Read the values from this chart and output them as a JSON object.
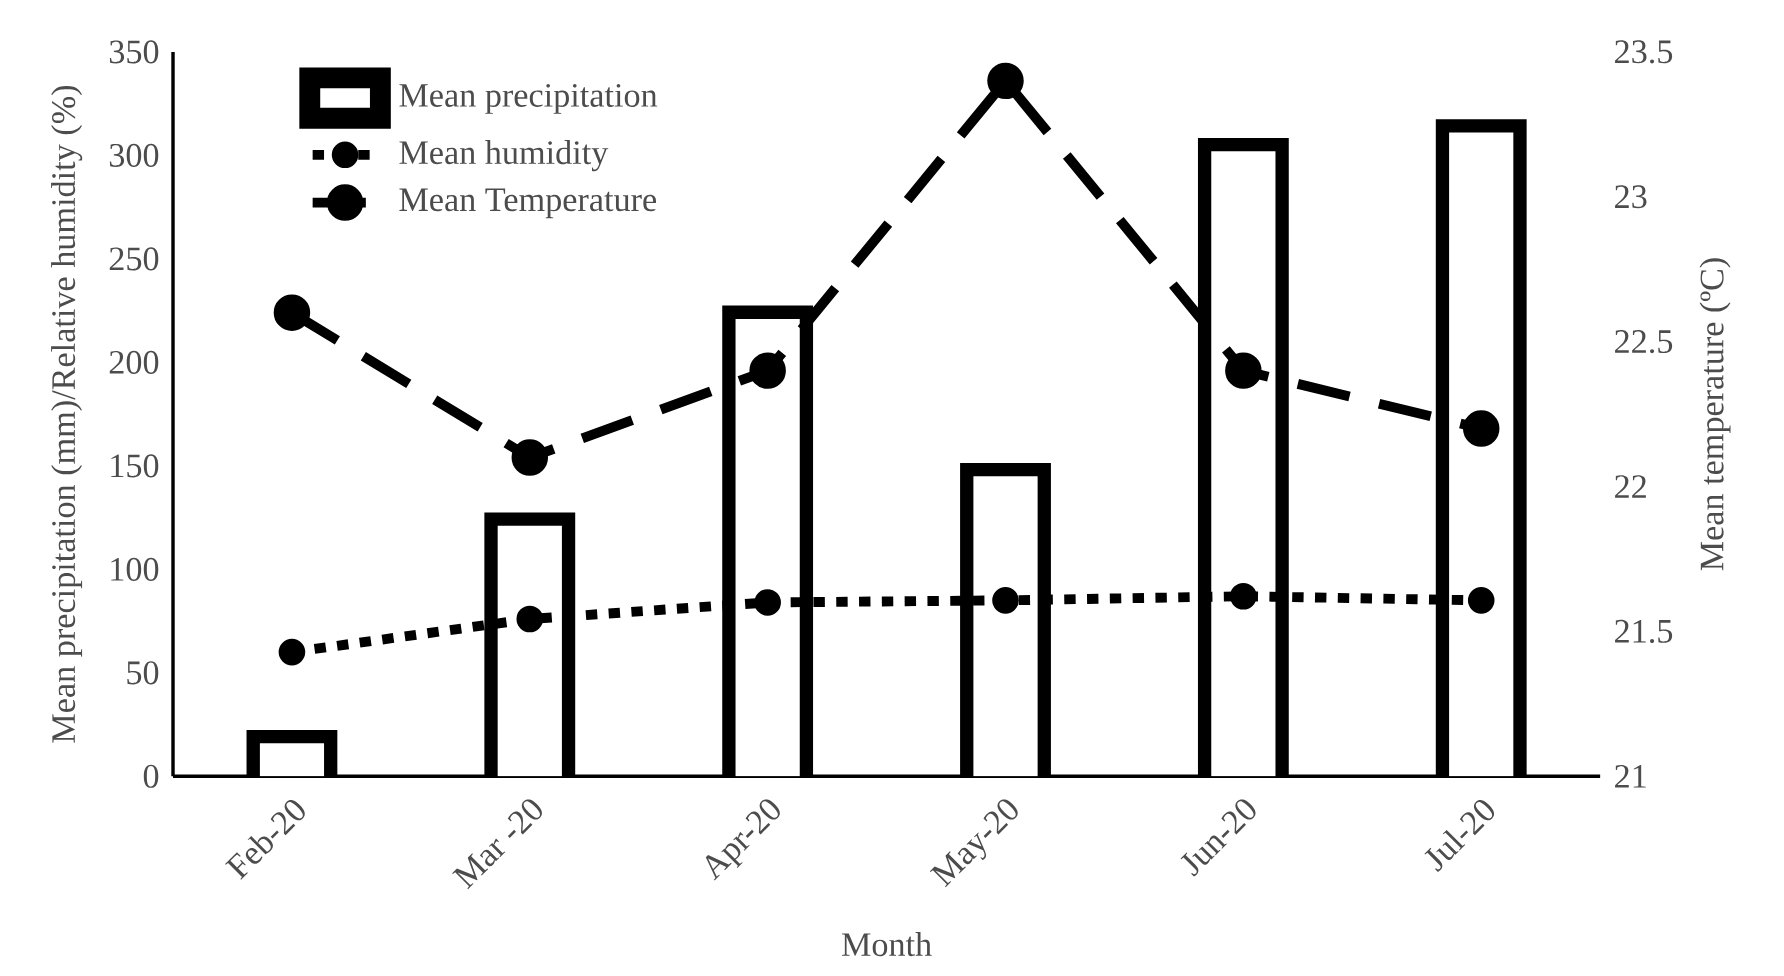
{
  "chart_data": {
    "type": "bar",
    "categories": [
      "Feb-20",
      "Mar -20",
      "Apr-20",
      "May-20",
      "Jun-20",
      "Jul-20"
    ],
    "xlabel": "Month",
    "ylabel": "Mean precipitation (mm)/Relative humidity (%)",
    "y2label": "Mean temperature (ºC)",
    "ylim": [
      0,
      350
    ],
    "yticks": [
      0,
      50,
      100,
      150,
      200,
      250,
      300,
      350
    ],
    "y2lim": [
      21,
      23.5
    ],
    "y2ticks": [
      21,
      21.5,
      22,
      22.5,
      23,
      23.5
    ],
    "legend": "top left",
    "series": [
      {
        "name": "Mean precipitation",
        "color": "#ffffff",
        "values": [
          16,
          121,
          221,
          145,
          302,
          311
        ]
      },
      {
        "name": "Mean humidity",
        "type": "line",
        "color": "#000000",
        "marker": "circle",
        "line_style": "dotted",
        "values": [
          60,
          76,
          84,
          85,
          87,
          85
        ]
      },
      {
        "name": "Mean Temperature",
        "type": "line",
        "axis": "y2",
        "color": "#000000",
        "marker": "circle",
        "line_style": "dashed",
        "values": [
          22.6,
          22.1,
          22.4,
          23.4,
          22.4,
          22.2
        ]
      }
    ]
  }
}
